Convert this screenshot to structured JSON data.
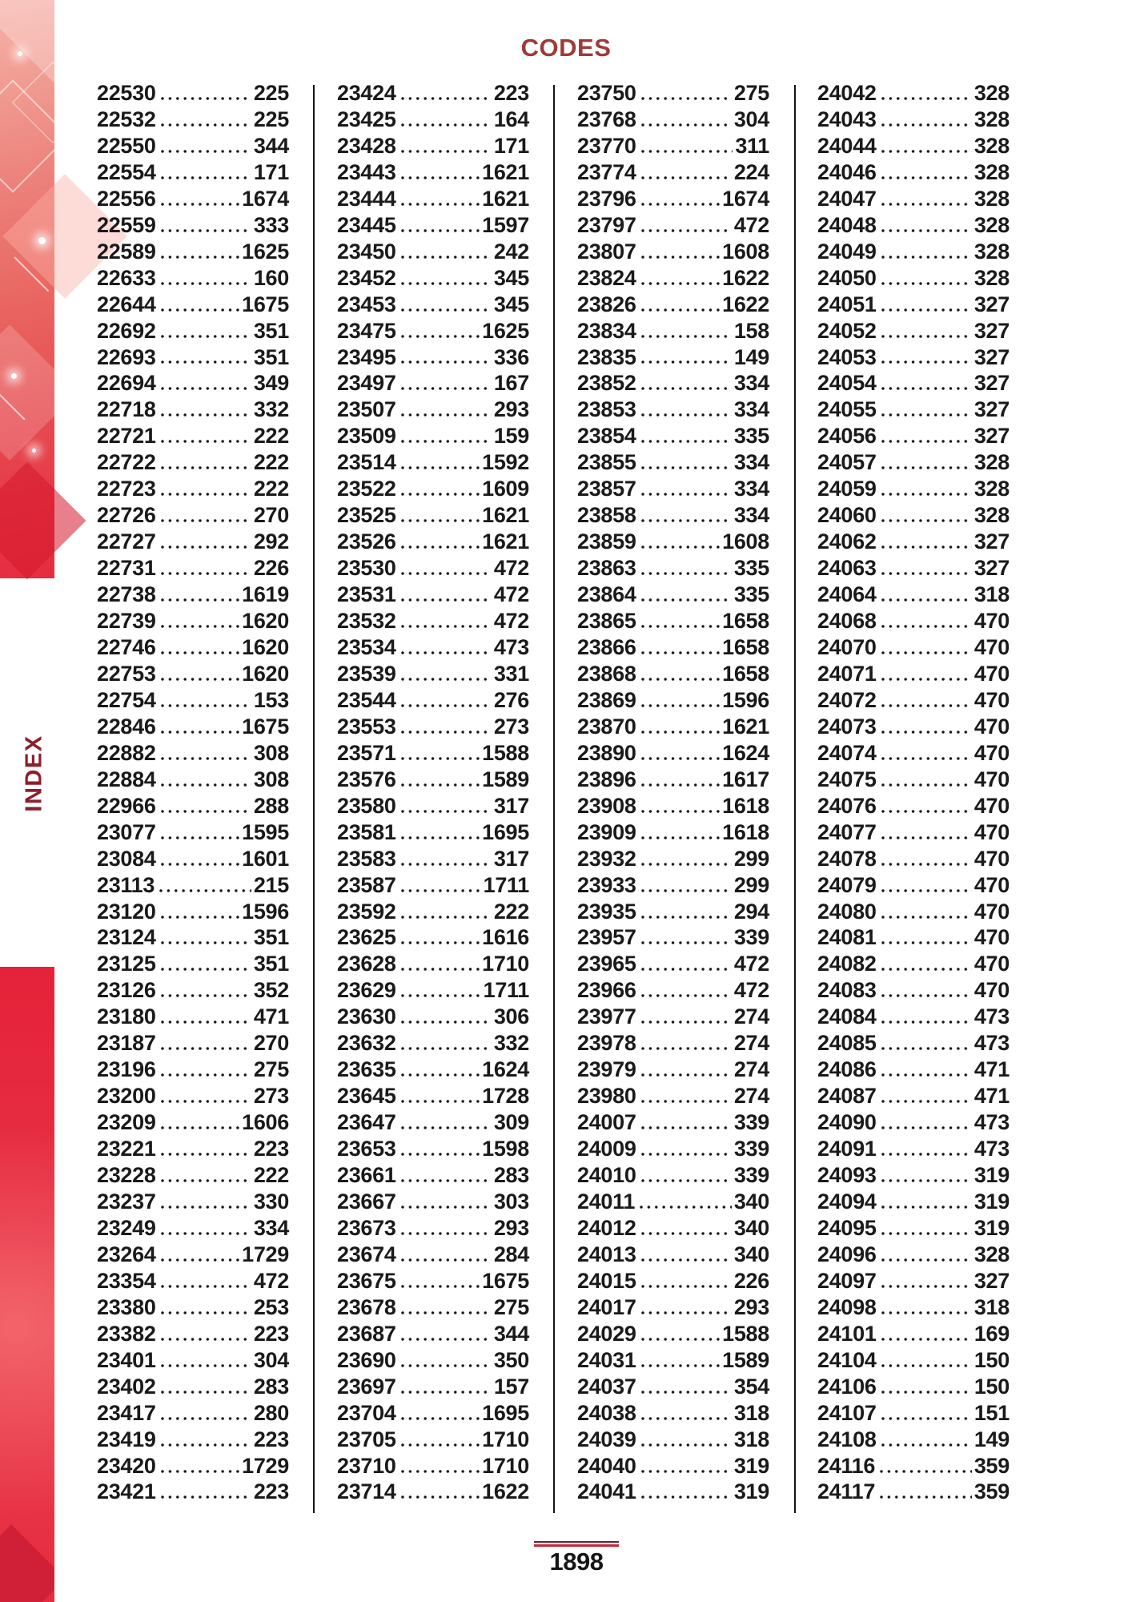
{
  "page": {
    "title": "CODES",
    "sidebar_label": "INDEX",
    "footer_page_number": "1898",
    "colors": {
      "title": "#9d3a3a",
      "sidebar_label": "#8b1f2c",
      "accent_red": "#e6293f",
      "text": "#1a1a1a",
      "rule_top": "#6e222c",
      "rule_bottom": "#c22740"
    }
  },
  "index": {
    "columns": [
      {
        "entries": [
          [
            "22530",
            "225"
          ],
          [
            "22532",
            "225"
          ],
          [
            "22550",
            "344"
          ],
          [
            "22554",
            "171"
          ],
          [
            "22556",
            "1674"
          ],
          [
            "22559",
            "333"
          ],
          [
            "22589",
            "1625"
          ],
          [
            "22633",
            "160"
          ],
          [
            "22644",
            "1675"
          ],
          [
            "22692",
            "351"
          ],
          [
            "22693",
            "351"
          ],
          [
            "22694",
            "349"
          ],
          [
            "22718",
            "332"
          ],
          [
            "22721",
            "222"
          ],
          [
            "22722",
            "222"
          ],
          [
            "22723",
            "222"
          ],
          [
            "22726",
            "270"
          ],
          [
            "22727",
            "292"
          ],
          [
            "22731",
            "226"
          ],
          [
            "22738",
            "1619"
          ],
          [
            "22739",
            "1620"
          ],
          [
            "22746",
            "1620"
          ],
          [
            "22753",
            "1620"
          ],
          [
            "22754",
            "153"
          ],
          [
            "22846",
            "1675"
          ],
          [
            "22882",
            "308"
          ],
          [
            "22884",
            "308"
          ],
          [
            "22966",
            "288"
          ],
          [
            "23077",
            "1595"
          ],
          [
            "23084",
            "1601"
          ],
          [
            "23113",
            "215"
          ],
          [
            "23120",
            "1596"
          ],
          [
            "23124",
            "351"
          ],
          [
            "23125",
            "351"
          ],
          [
            "23126",
            "352"
          ],
          [
            "23180",
            "471"
          ],
          [
            "23187",
            "270"
          ],
          [
            "23196",
            "275"
          ],
          [
            "23200",
            "273"
          ],
          [
            "23209",
            "1606"
          ],
          [
            "23221",
            "223"
          ],
          [
            "23228",
            "222"
          ],
          [
            "23237",
            "330"
          ],
          [
            "23249",
            "334"
          ],
          [
            "23264",
            "1729"
          ],
          [
            "23354",
            "472"
          ],
          [
            "23380",
            "253"
          ],
          [
            "23382",
            "223"
          ],
          [
            "23401",
            "304"
          ],
          [
            "23402",
            "283"
          ],
          [
            "23417",
            "280"
          ],
          [
            "23419",
            "223"
          ],
          [
            "23420",
            "1729"
          ],
          [
            "23421",
            "223"
          ]
        ]
      },
      {
        "entries": [
          [
            "23424",
            "223"
          ],
          [
            "23425",
            "164"
          ],
          [
            "23428",
            "171"
          ],
          [
            "23443",
            "1621"
          ],
          [
            "23444",
            "1621"
          ],
          [
            "23445",
            "1597"
          ],
          [
            "23450",
            "242"
          ],
          [
            "23452",
            "345"
          ],
          [
            "23453",
            "345"
          ],
          [
            "23475",
            "1625"
          ],
          [
            "23495",
            "336"
          ],
          [
            "23497",
            "167"
          ],
          [
            "23507",
            "293"
          ],
          [
            "23509",
            "159"
          ],
          [
            "23514",
            "1592"
          ],
          [
            "23522",
            "1609"
          ],
          [
            "23525",
            "1621"
          ],
          [
            "23526",
            "1621"
          ],
          [
            "23530",
            "472"
          ],
          [
            "23531",
            "472"
          ],
          [
            "23532",
            "472"
          ],
          [
            "23534",
            "473"
          ],
          [
            "23539",
            "331"
          ],
          [
            "23544",
            "276"
          ],
          [
            "23553",
            "273"
          ],
          [
            "23571",
            "1588"
          ],
          [
            "23576",
            "1589"
          ],
          [
            "23580",
            "317"
          ],
          [
            "23581",
            "1695"
          ],
          [
            "23583",
            "317"
          ],
          [
            "23587",
            "1711"
          ],
          [
            "23592",
            "222"
          ],
          [
            "23625",
            "1616"
          ],
          [
            "23628",
            "1710"
          ],
          [
            "23629",
            "1711"
          ],
          [
            "23630",
            "306"
          ],
          [
            "23632",
            "332"
          ],
          [
            "23635",
            "1624"
          ],
          [
            "23645",
            "1728"
          ],
          [
            "23647",
            "309"
          ],
          [
            "23653",
            "1598"
          ],
          [
            "23661",
            "283"
          ],
          [
            "23667",
            "303"
          ],
          [
            "23673",
            "293"
          ],
          [
            "23674",
            "284"
          ],
          [
            "23675",
            "1675"
          ],
          [
            "23678",
            "275"
          ],
          [
            "23687",
            "344"
          ],
          [
            "23690",
            "350"
          ],
          [
            "23697",
            "157"
          ],
          [
            "23704",
            "1695"
          ],
          [
            "23705",
            "1710"
          ],
          [
            "23710",
            "1710"
          ],
          [
            "23714",
            "1622"
          ]
        ]
      },
      {
        "entries": [
          [
            "23750",
            "275"
          ],
          [
            "23768",
            "304"
          ],
          [
            "23770",
            "311"
          ],
          [
            "23774",
            "224"
          ],
          [
            "23796",
            "1674"
          ],
          [
            "23797",
            "472"
          ],
          [
            "23807",
            "1608"
          ],
          [
            "23824",
            "1622"
          ],
          [
            "23826",
            "1622"
          ],
          [
            "23834",
            "158"
          ],
          [
            "23835",
            "149"
          ],
          [
            "23852",
            "334"
          ],
          [
            "23853",
            "334"
          ],
          [
            "23854",
            "335"
          ],
          [
            "23855",
            "334"
          ],
          [
            "23857",
            "334"
          ],
          [
            "23858",
            "334"
          ],
          [
            "23859",
            "1608"
          ],
          [
            "23863",
            "335"
          ],
          [
            "23864",
            "335"
          ],
          [
            "23865",
            "1658"
          ],
          [
            "23866",
            "1658"
          ],
          [
            "23868",
            "1658"
          ],
          [
            "23869",
            "1596"
          ],
          [
            "23870",
            "1621"
          ],
          [
            "23890",
            "1624"
          ],
          [
            "23896",
            "1617"
          ],
          [
            "23908",
            "1618"
          ],
          [
            "23909",
            "1618"
          ],
          [
            "23932",
            "299"
          ],
          [
            "23933",
            "299"
          ],
          [
            "23935",
            "294"
          ],
          [
            "23957",
            "339"
          ],
          [
            "23965",
            "472"
          ],
          [
            "23966",
            "472"
          ],
          [
            "23977",
            "274"
          ],
          [
            "23978",
            "274"
          ],
          [
            "23979",
            "274"
          ],
          [
            "23980",
            "274"
          ],
          [
            "24007",
            "339"
          ],
          [
            "24009",
            "339"
          ],
          [
            "24010",
            "339"
          ],
          [
            "24011",
            "340"
          ],
          [
            "24012",
            "340"
          ],
          [
            "24013",
            "340"
          ],
          [
            "24015",
            "226"
          ],
          [
            "24017",
            "293"
          ],
          [
            "24029",
            "1588"
          ],
          [
            "24031",
            "1589"
          ],
          [
            "24037",
            "354"
          ],
          [
            "24038",
            "318"
          ],
          [
            "24039",
            "318"
          ],
          [
            "24040",
            "319"
          ],
          [
            "24041",
            "319"
          ]
        ]
      },
      {
        "entries": [
          [
            "24042",
            "328"
          ],
          [
            "24043",
            "328"
          ],
          [
            "24044",
            "328"
          ],
          [
            "24046",
            "328"
          ],
          [
            "24047",
            "328"
          ],
          [
            "24048",
            "328"
          ],
          [
            "24049",
            "328"
          ],
          [
            "24050",
            "328"
          ],
          [
            "24051",
            "327"
          ],
          [
            "24052",
            "327"
          ],
          [
            "24053",
            "327"
          ],
          [
            "24054",
            "327"
          ],
          [
            "24055",
            "327"
          ],
          [
            "24056",
            "327"
          ],
          [
            "24057",
            "328"
          ],
          [
            "24059",
            "328"
          ],
          [
            "24060",
            "328"
          ],
          [
            "24062",
            "327"
          ],
          [
            "24063",
            "327"
          ],
          [
            "24064",
            "318"
          ],
          [
            "24068",
            "470"
          ],
          [
            "24070",
            "470"
          ],
          [
            "24071",
            "470"
          ],
          [
            "24072",
            "470"
          ],
          [
            "24073",
            "470"
          ],
          [
            "24074",
            "470"
          ],
          [
            "24075",
            "470"
          ],
          [
            "24076",
            "470"
          ],
          [
            "24077",
            "470"
          ],
          [
            "24078",
            "470"
          ],
          [
            "24079",
            "470"
          ],
          [
            "24080",
            "470"
          ],
          [
            "24081",
            "470"
          ],
          [
            "24082",
            "470"
          ],
          [
            "24083",
            "470"
          ],
          [
            "24084",
            "473"
          ],
          [
            "24085",
            "473"
          ],
          [
            "24086",
            "471"
          ],
          [
            "24087",
            "471"
          ],
          [
            "24090",
            "473"
          ],
          [
            "24091",
            "473"
          ],
          [
            "24093",
            "319"
          ],
          [
            "24094",
            "319"
          ],
          [
            "24095",
            "319"
          ],
          [
            "24096",
            "328"
          ],
          [
            "24097",
            "327"
          ],
          [
            "24098",
            "318"
          ],
          [
            "24101",
            "169"
          ],
          [
            "24104",
            "150"
          ],
          [
            "24106",
            "150"
          ],
          [
            "24107",
            "151"
          ],
          [
            "24108",
            "149"
          ],
          [
            "24116",
            "359"
          ],
          [
            "24117",
            "359"
          ]
        ]
      }
    ]
  }
}
